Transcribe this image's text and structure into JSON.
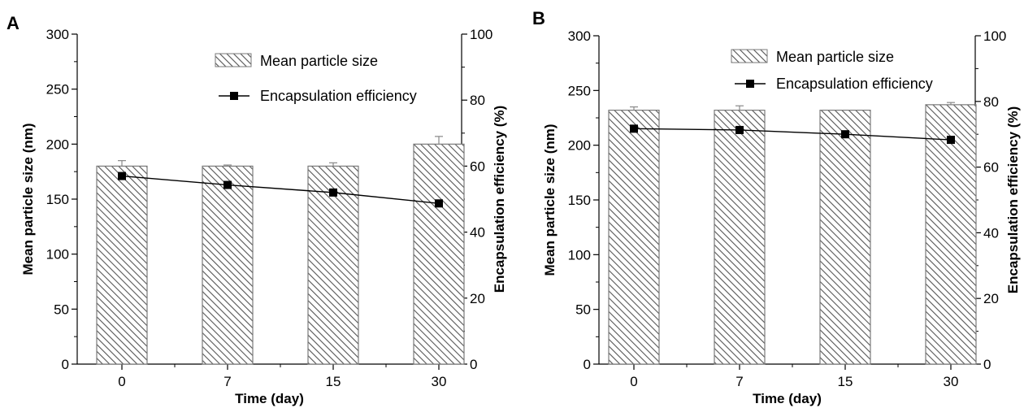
{
  "chart_data": [
    {
      "panel": "A",
      "type": "bar",
      "categories": [
        "0",
        "7",
        "15",
        "30"
      ],
      "xlabel": "Time (day)",
      "ylabel": "Mean particle size (nm)",
      "y2label": "Encapsulation efficiency (%)",
      "ylim": [
        0,
        300
      ],
      "yticks": [
        "0",
        "50",
        "100",
        "150",
        "200",
        "250",
        "300"
      ],
      "y2lim": [
        0,
        100
      ],
      "y2ticks": [
        "0",
        "20",
        "40",
        "60",
        "80",
        "100"
      ],
      "legend_placement": "top-right",
      "series": [
        {
          "name": "Mean particle size",
          "kind": "bar",
          "axis": "left",
          "values": [
            180,
            180,
            180,
            200
          ],
          "errors": [
            5,
            1,
            3,
            7
          ]
        },
        {
          "name": "Encapsulation efficiency",
          "kind": "line",
          "axis": "right",
          "values": [
            57,
            54.3,
            52,
            48.7
          ]
        }
      ]
    },
    {
      "panel": "B",
      "type": "bar",
      "categories": [
        "0",
        "7",
        "15",
        "30"
      ],
      "xlabel": "Time (day)",
      "ylabel": "Mean particle size (nm)",
      "y2label": "Encapsulation efficiency (%)",
      "ylim": [
        0,
        300
      ],
      "yticks": [
        "0",
        "50",
        "100",
        "150",
        "200",
        "250",
        "300"
      ],
      "y2lim": [
        0,
        100
      ],
      "y2ticks": [
        "0",
        "20",
        "40",
        "60",
        "80",
        "100"
      ],
      "legend_placement": "top-right",
      "series": [
        {
          "name": "Mean particle size",
          "kind": "bar",
          "axis": "left",
          "values": [
            232,
            232,
            232,
            237
          ],
          "errors": [
            3,
            4,
            0,
            2
          ]
        },
        {
          "name": "Encapsulation efficiency",
          "kind": "line",
          "axis": "right",
          "values": [
            71.7,
            71.3,
            70,
            68.3
          ]
        }
      ]
    }
  ],
  "colors": {
    "bar_fill": "#ffffff",
    "bar_hatch": "#555555",
    "bar_edge": "#7a7a7a",
    "line": "#000000",
    "marker": "#000000",
    "error_bar": "#888888"
  }
}
